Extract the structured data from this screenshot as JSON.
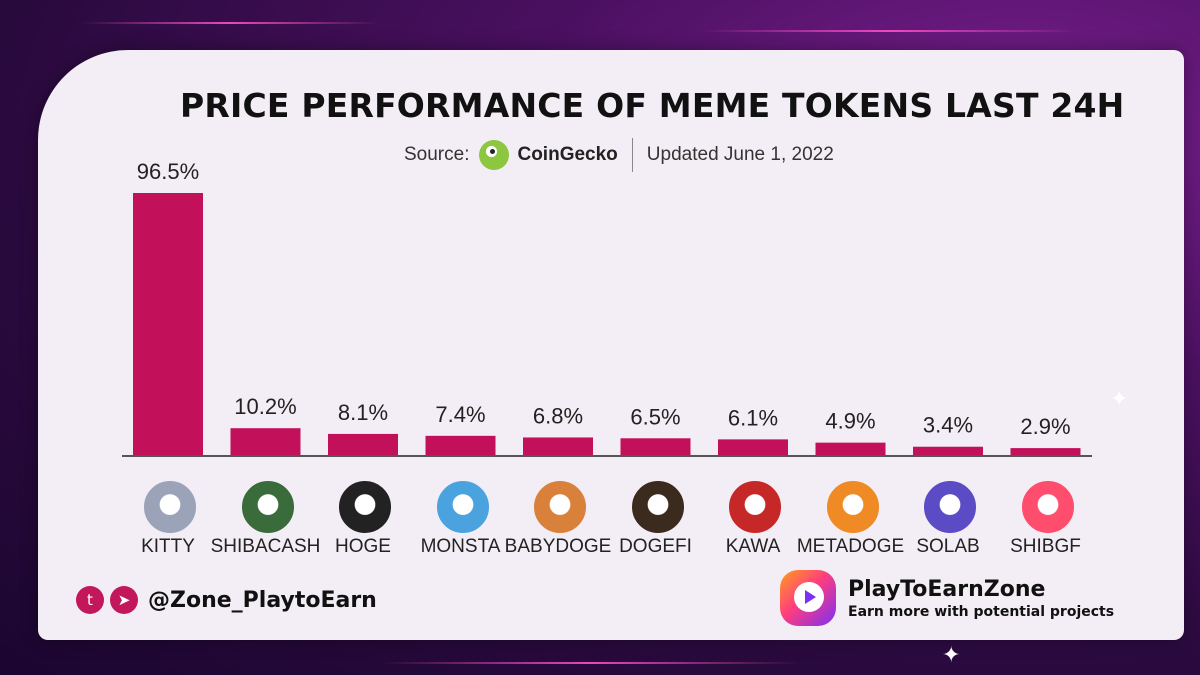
{
  "colors": {
    "bar": "#c2105b",
    "axis": "#555555",
    "card": "#f3eef5"
  },
  "source": {
    "prefix": "Source:",
    "name": "CoinGecko",
    "updated": "Updated June 1, 2022"
  },
  "social": {
    "twitter_icon": "twitter-icon",
    "telegram_icon": "telegram-icon",
    "handle": "@Zone_PlaytoEarn"
  },
  "brand": {
    "name": "PlayToEarnZone",
    "tagline": "Earn more with potential projects"
  },
  "chart_data": {
    "type": "bar",
    "title": "PRICE PERFORMANCE OF MEME TOKENS LAST 24H",
    "xlabel": "",
    "ylabel": "",
    "ylim": [
      0,
      96.5
    ],
    "grid": false,
    "categories": [
      "KITTY",
      "SHIBACASH",
      "HOGE",
      "MONSTA",
      "BABYDOGE",
      "DOGEFI",
      "KAWA",
      "METADOGE",
      "SOLAB",
      "SHIBGF"
    ],
    "values": [
      96.5,
      10.2,
      8.1,
      7.4,
      6.8,
      6.5,
      6.1,
      4.9,
      3.4,
      2.9
    ],
    "value_labels": [
      "96.5%",
      "10.2%",
      "8.1%",
      "7.4%",
      "6.8%",
      "6.5%",
      "6.1%",
      "4.9%",
      "3.4%",
      "2.9%"
    ],
    "token_icon_colors": [
      "#9aa3b8",
      "#3a6b3a",
      "#222222",
      "#4aa3df",
      "#d9813a",
      "#3b2a1e",
      "#c62828",
      "#f08a24",
      "#5b4bc4",
      "#ff4d6d"
    ]
  }
}
